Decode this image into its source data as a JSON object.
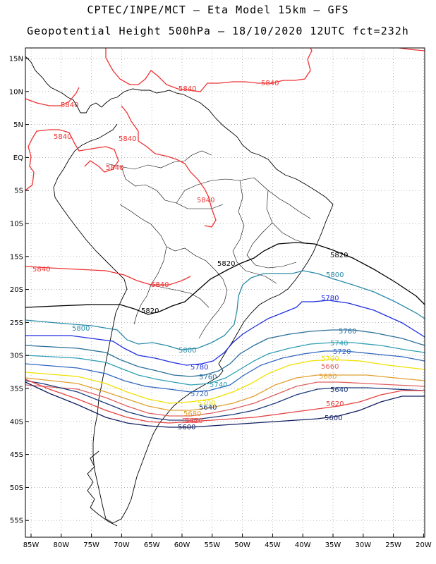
{
  "header": {
    "line1": "CPTEC/INPE/MCT –  Eta Model 15km – GFS",
    "line2": "Geopotential Height 500hPa – 18/10/2020 12UTC fct=232h"
  },
  "axes": {
    "lat_labels": [
      "15N",
      "10N",
      "5N",
      "EQ",
      "5S",
      "10S",
      "15S",
      "20S",
      "25S",
      "30S",
      "35S",
      "40S",
      "45S",
      "50S",
      "55S"
    ],
    "lon_labels": [
      "85W",
      "80W",
      "75W",
      "70W",
      "65W",
      "60W",
      "55W",
      "50W",
      "45W",
      "40W",
      "35W",
      "30W",
      "25W",
      "20W"
    ]
  },
  "colors": {
    "c5840": "#ee3333",
    "c5820": "#000000",
    "c5800": "#2a8aa8",
    "c5780": "#1f2ee0",
    "c5760": "#2a6f9a",
    "c5740": "#2f9fb4",
    "c5720": "#3066c0",
    "c5700": "#f0e000",
    "c5680": "#e0a030",
    "c5660": "#e06060",
    "c5640": "#1a3a7a",
    "c5620": "#e84040",
    "c5600": "#101e60"
  },
  "contours": [
    {
      "value": "5840",
      "color": "c5840"
    },
    {
      "value": "5820",
      "color": "c5820"
    },
    {
      "value": "5800",
      "color": "c5800"
    },
    {
      "value": "5780",
      "color": "c5780"
    },
    {
      "value": "5760",
      "color": "c5760"
    },
    {
      "value": "5740",
      "color": "c5740"
    },
    {
      "value": "5720",
      "color": "c5720"
    },
    {
      "value": "5700",
      "color": "c5700"
    },
    {
      "value": "5680",
      "color": "c5680"
    },
    {
      "value": "5660",
      "color": "c5660"
    },
    {
      "value": "5640",
      "color": "c5640"
    },
    {
      "value": "5620",
      "color": "c5620"
    },
    {
      "value": "5600",
      "color": "c5600"
    }
  ],
  "contour_labels": [
    {
      "text": "5840",
      "color": "c5840"
    },
    {
      "text": "5840",
      "color": "c5840"
    },
    {
      "text": "5840",
      "color": "c5840"
    },
    {
      "text": "5840",
      "color": "c5840"
    },
    {
      "text": "5840",
      "color": "c5840"
    },
    {
      "text": "5840",
      "color": "c5840"
    },
    {
      "text": "5840",
      "color": "c5840"
    },
    {
      "text": "5840",
      "color": "c5840"
    },
    {
      "text": "5840",
      "color": "c5840"
    },
    {
      "text": "5820",
      "color": "c5820"
    },
    {
      "text": "5820",
      "color": "c5820"
    },
    {
      "text": "5820",
      "color": "c5820"
    },
    {
      "text": "5800",
      "color": "c5800"
    },
    {
      "text": "5800",
      "color": "c5800"
    },
    {
      "text": "5800",
      "color": "c5800"
    },
    {
      "text": "5780",
      "color": "c5780"
    },
    {
      "text": "5780",
      "color": "c5780"
    },
    {
      "text": "5760",
      "color": "c5760"
    },
    {
      "text": "5760",
      "color": "c5760"
    },
    {
      "text": "5740",
      "color": "c5740"
    },
    {
      "text": "5740",
      "color": "c5740"
    },
    {
      "text": "5720",
      "color": "c5720"
    },
    {
      "text": "5720",
      "color": "c5720"
    },
    {
      "text": "5700",
      "color": "c5700"
    },
    {
      "text": "5700",
      "color": "c5700"
    },
    {
      "text": "5680",
      "color": "c5680"
    },
    {
      "text": "5680",
      "color": "c5680"
    },
    {
      "text": "5660",
      "color": "c5660"
    },
    {
      "text": "5660",
      "color": "c5660"
    },
    {
      "text": "5640",
      "color": "c5640"
    },
    {
      "text": "5640",
      "color": "c5640"
    },
    {
      "text": "5620",
      "color": "c5620"
    },
    {
      "text": "5620",
      "color": "c5620"
    },
    {
      "text": "5600",
      "color": "c5600"
    },
    {
      "text": "5600",
      "color": "c5600"
    }
  ]
}
